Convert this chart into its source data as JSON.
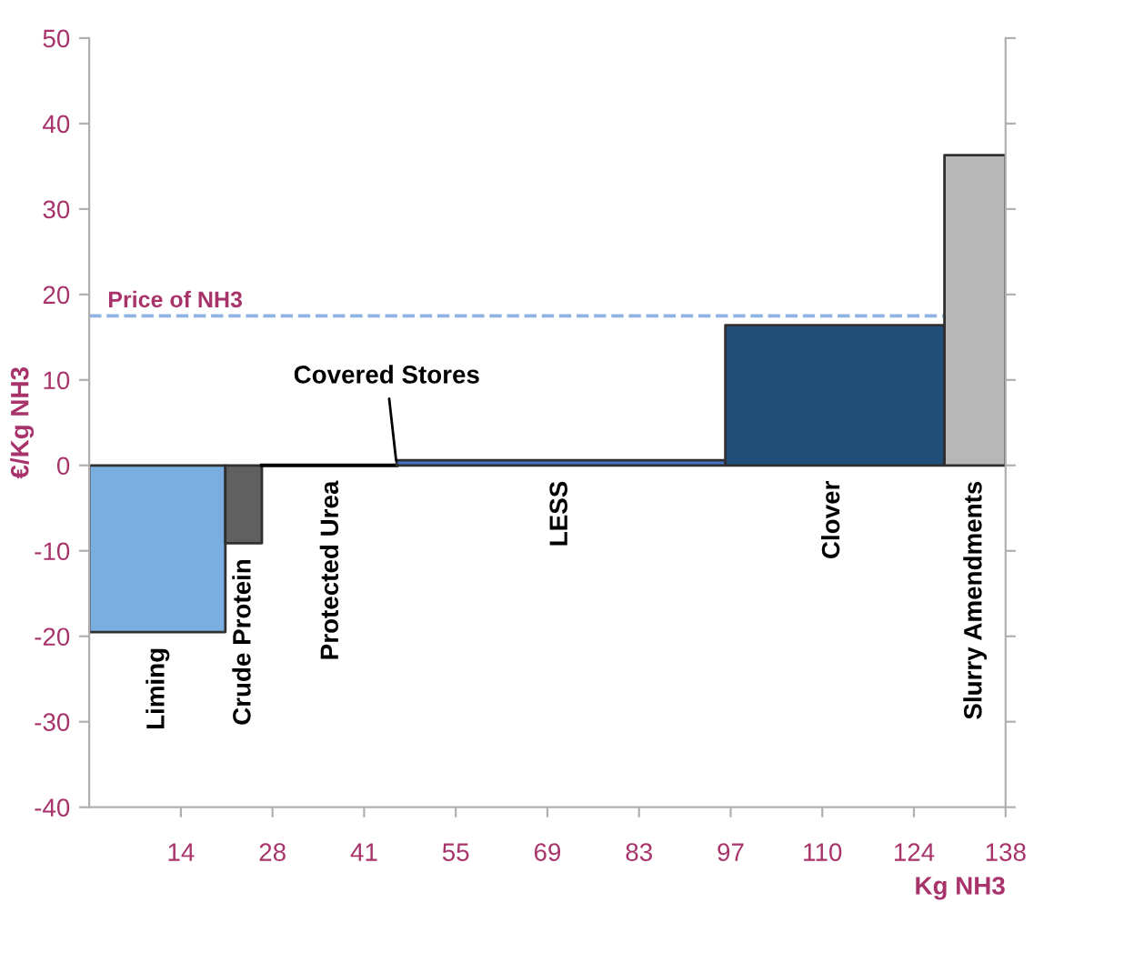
{
  "chart_data": {
    "type": "area",
    "xlabel": "Kg NH3",
    "ylabel": "€/Kg NH3",
    "series": [
      {
        "color": "#7aaee0",
        "x": [
          0,
          20.5
        ],
        "values": [
          -19.5,
          -19.5
        ]
      },
      {
        "color": "#606060",
        "x": [
          20.5,
          26.0
        ],
        "values": [
          -9.1,
          -9.1
        ]
      },
      {
        "type": "line",
        "color": "#000000",
        "x": [
          26.0,
          46.3
        ],
        "values": [
          0,
          0
        ]
      },
      {
        "color": "#4472c4",
        "x": [
          46.3,
          95.8
        ],
        "values": [
          0.6,
          0.6
        ]
      },
      {
        "color": "#1f4e79",
        "x": [
          95.8,
          128.8
        ],
        "values": [
          16.4,
          16.4
        ]
      },
      {
        "color": "#b8b8b8",
        "x": [
          128.8,
          138
        ],
        "values": [
          36.3,
          36.3
        ]
      }
    ],
    "annotations": [
      {
        "text": "Liming",
        "x": 10.3,
        "y": -19.5
      },
      {
        "text": "Crude Protein",
        "x": 23.3,
        "y": -9.1
      },
      {
        "text": "Protected Urea",
        "x": 36.5,
        "y": 0
      },
      {
        "text": "Covered Stores",
        "x": 46.3,
        "y": 0
      },
      {
        "text": "LESS",
        "x": 71,
        "y": 0
      },
      {
        "text": "Clover",
        "x": 112,
        "y": 0
      },
      {
        "text": "Slurry Amendments",
        "x": 133.4,
        "y": 0
      }
    ],
    "ref_lines": [
      {
        "axis": "y",
        "value": 17.5,
        "label": "Price of NH3",
        "color": "#8fb4e3",
        "line_style": "dashed"
      }
    ],
    "xlim": [
      0,
      138
    ],
    "xticks": [
      {
        "value": 13.8,
        "label": "14"
      },
      {
        "value": 27.6,
        "label": "28"
      },
      {
        "value": 41.4,
        "label": "41"
      },
      {
        "value": 55.2,
        "label": "55"
      },
      {
        "value": 69,
        "label": "69"
      },
      {
        "value": 82.8,
        "label": "83"
      },
      {
        "value": 96.6,
        "label": "97"
      },
      {
        "value": 110.4,
        "label": "110"
      },
      {
        "value": 124.2,
        "label": "124"
      },
      {
        "value": 138,
        "label": "138"
      }
    ],
    "ylim": [
      -40,
      50
    ],
    "yticks": [
      -40,
      -30,
      -20,
      -10,
      0,
      10,
      20,
      30,
      40,
      50
    ],
    "grid": false
  }
}
